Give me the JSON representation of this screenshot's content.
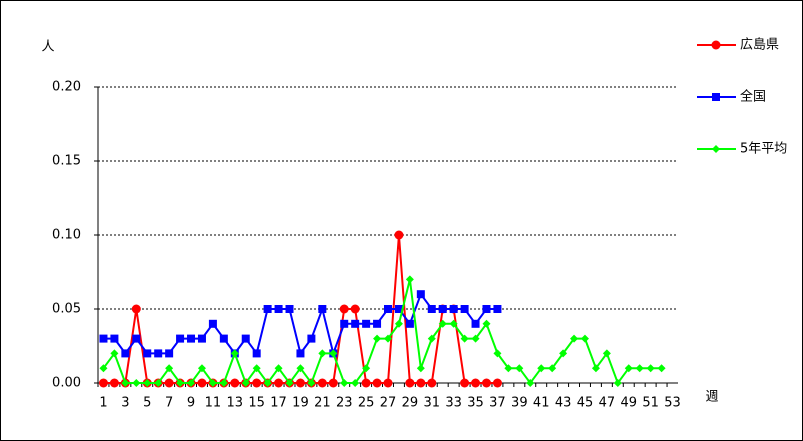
{
  "chart_data": {
    "type": "line",
    "y_label": "人",
    "x_label": "週",
    "categories": [
      1,
      null,
      3,
      null,
      5,
      null,
      7,
      null,
      9,
      null,
      11,
      null,
      13,
      null,
      15,
      null,
      17,
      null,
      19,
      null,
      21,
      null,
      23,
      null,
      25,
      null,
      27,
      null,
      29,
      null,
      31,
      null,
      33,
      null,
      35,
      null,
      37,
      null,
      39,
      null,
      41,
      null,
      43,
      null,
      45,
      null,
      47,
      null,
      49,
      null,
      51,
      null,
      53
    ],
    "series": [
      {
        "name": "広島県",
        "color": "#ff0000",
        "marker": "circle",
        "values": [
          0,
          0,
          0,
          0.05,
          0,
          0,
          0,
          0,
          0,
          0,
          0,
          0,
          0,
          0,
          0,
          0,
          0,
          0,
          0,
          0,
          0,
          0,
          0.05,
          0.05,
          0,
          0,
          0,
          0.1,
          0,
          0,
          0,
          0.05,
          0.05,
          0,
          0,
          0,
          0,
          null,
          null,
          null,
          null,
          null,
          null,
          null,
          null,
          null,
          null,
          null,
          null,
          null,
          null,
          null,
          null
        ]
      },
      {
        "name": "全国",
        "color": "#0000ff",
        "marker": "square",
        "values": [
          0.03,
          0.03,
          0.02,
          0.03,
          0.02,
          0.02,
          0.02,
          0.03,
          0.03,
          0.03,
          0.04,
          0.03,
          0.02,
          0.03,
          0.02,
          0.05,
          0.05,
          0.05,
          0.02,
          0.03,
          0.05,
          0.02,
          0.04,
          0.04,
          0.04,
          0.04,
          0.05,
          0.05,
          0.04,
          0.06,
          0.05,
          0.05,
          0.05,
          0.05,
          0.04,
          0.05,
          0.05,
          null,
          null,
          null,
          null,
          null,
          null,
          null,
          null,
          null,
          null,
          null,
          null,
          null,
          null,
          null,
          null
        ]
      },
      {
        "name": "5年平均",
        "color": "#00ff00",
        "marker": "diamond",
        "values": [
          0.01,
          0.02,
          0,
          0,
          0,
          0,
          0.01,
          0,
          0,
          0.01,
          0,
          0,
          0.02,
          0,
          0.01,
          0,
          0.01,
          0,
          0.01,
          0,
          0.02,
          0.02,
          0,
          0,
          0.01,
          0.03,
          0.03,
          0.04,
          0.07,
          0.01,
          0.03,
          0.04,
          0.04,
          0.03,
          0.03,
          0.04,
          0.02,
          0.01,
          0.01,
          0,
          0.01,
          0.01,
          0.02,
          0.03,
          0.03,
          0.01,
          0.02,
          0,
          0.01,
          0.01,
          0.01,
          0.01,
          null
        ]
      }
    ],
    "ylim": [
      0,
      0.2
    ],
    "yticks": [
      {
        "value": 0,
        "label": "0.00"
      },
      {
        "value": 0.05,
        "label": "0.05"
      },
      {
        "value": 0.1,
        "label": "0.10"
      },
      {
        "value": 0.15,
        "label": "0.15"
      },
      {
        "value": 0.2,
        "label": "0.20"
      }
    ],
    "grid": true,
    "legend": "right"
  }
}
